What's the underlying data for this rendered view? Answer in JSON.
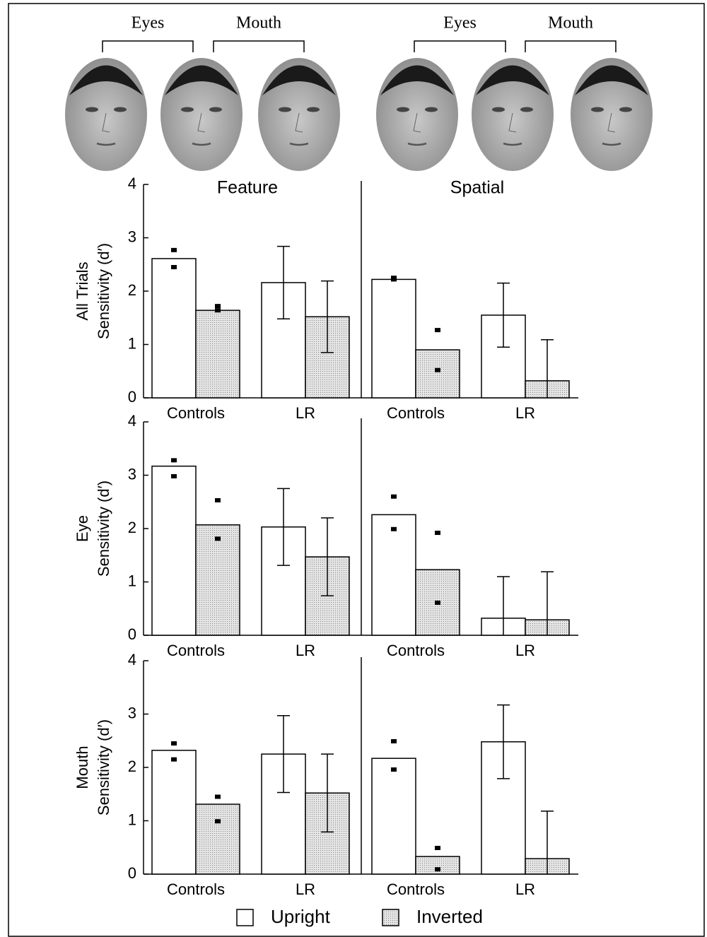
{
  "faces": {
    "brackets": [
      "Eyes",
      "Mouth",
      "Eyes",
      "Mouth"
    ]
  },
  "legend": [
    {
      "name": "Upright",
      "color": "#ffffff"
    },
    {
      "name": "Inverted",
      "color": "#d6d6d6"
    }
  ],
  "chart_data": [
    {
      "type": "bar",
      "panels": [
        "Feature",
        "Spatial"
      ],
      "ylabel": [
        "All Trials",
        "Sensitivity (d′)"
      ],
      "categories": [
        "Controls",
        "LR",
        "Controls",
        "LR"
      ],
      "ylim": [
        0,
        4
      ],
      "yticks": [
        0,
        1,
        2,
        3,
        4
      ],
      "series": [
        {
          "values": [
            2.61,
            2.16,
            2.22,
            1.55
          ],
          "errors": [
            null,
            0.68,
            null,
            0.6
          ],
          "markers": [
            [
              2.77,
              2.45
            ],
            null,
            [
              2.25,
              2.22
            ],
            null
          ]
        },
        {
          "values": [
            1.64,
            1.52,
            0.9,
            0.32
          ],
          "errors": [
            null,
            0.67,
            null,
            0.77
          ],
          "markers": [
            [
              1.72,
              1.64
            ],
            null,
            [
              1.27,
              0.52
            ],
            null
          ]
        }
      ]
    },
    {
      "type": "bar",
      "ylabel": [
        "Eye",
        "Sensitivity (d′)"
      ],
      "categories": [
        "Controls",
        "LR",
        "Controls",
        "LR"
      ],
      "ylim": [
        0,
        4
      ],
      "yticks": [
        0,
        1,
        2,
        3,
        4
      ],
      "series": [
        {
          "values": [
            3.17,
            2.03,
            2.26,
            0.32
          ],
          "errors": [
            null,
            0.72,
            null,
            0.78
          ],
          "markers": [
            [
              3.28,
              2.98
            ],
            null,
            [
              2.6,
              1.99
            ],
            null
          ]
        },
        {
          "values": [
            2.07,
            1.47,
            1.23,
            0.29
          ],
          "errors": [
            null,
            0.73,
            null,
            0.9
          ],
          "markers": [
            [
              2.53,
              1.81
            ],
            null,
            [
              1.92,
              0.61
            ],
            null
          ]
        }
      ]
    },
    {
      "type": "bar",
      "ylabel": [
        "Mouth",
        "Sensitivity (d′)"
      ],
      "categories": [
        "Controls",
        "LR",
        "Controls",
        "LR"
      ],
      "ylim": [
        0,
        4
      ],
      "yticks": [
        0,
        1,
        2,
        3,
        4
      ],
      "series": [
        {
          "values": [
            2.32,
            2.25,
            2.17,
            2.48
          ],
          "errors": [
            null,
            0.72,
            null,
            0.69
          ],
          "markers": [
            [
              2.45,
              2.15
            ],
            null,
            [
              2.49,
              1.96
            ],
            null
          ]
        },
        {
          "values": [
            1.31,
            1.52,
            0.33,
            0.29
          ],
          "errors": [
            null,
            0.73,
            null,
            0.89
          ],
          "markers": [
            [
              1.45,
              0.99
            ],
            null,
            [
              0.49,
              0.09
            ],
            null
          ]
        }
      ]
    }
  ]
}
